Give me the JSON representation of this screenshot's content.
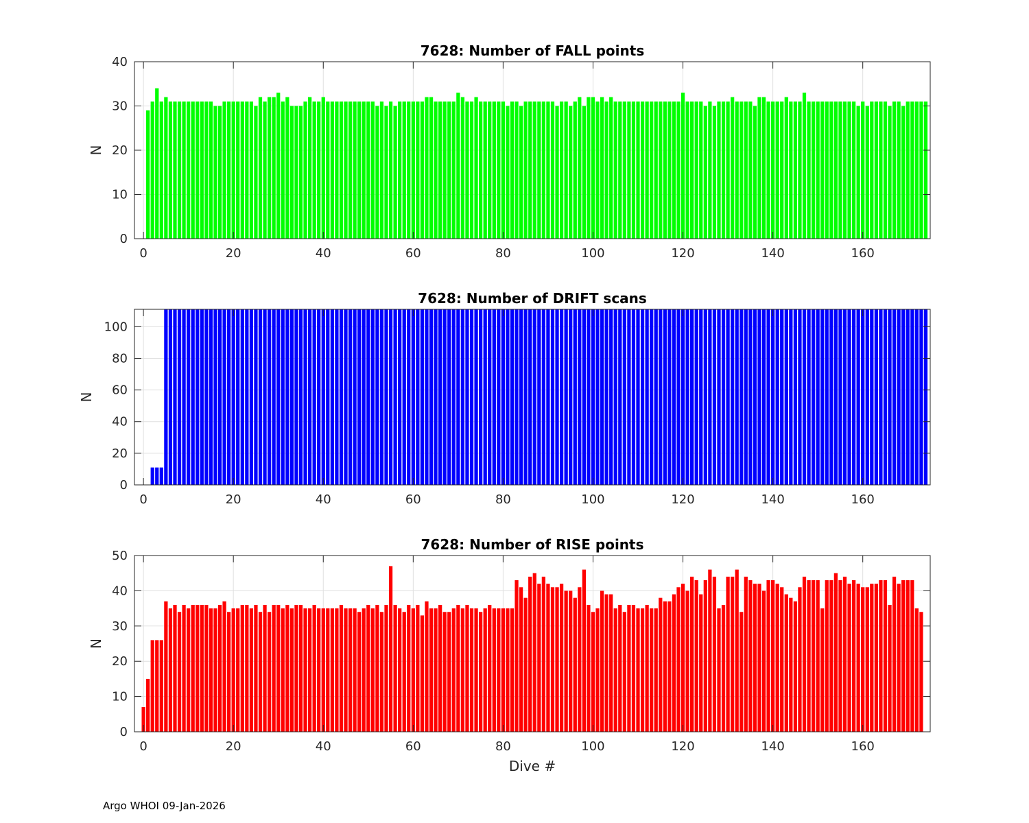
{
  "chart_data": [
    {
      "type": "bar",
      "title": "7628: Number of FALL points",
      "xlabel": "",
      "ylabel": "N",
      "color": "#00ff00",
      "xlim": [
        -2,
        175
      ],
      "ylim": [
        0,
        40
      ],
      "xticks": [
        0,
        20,
        40,
        60,
        80,
        100,
        120,
        140,
        160
      ],
      "yticks": [
        0,
        10,
        20,
        30,
        40
      ],
      "grid": true,
      "x_start": 1,
      "values": [
        29,
        31,
        34,
        31,
        32,
        31,
        31,
        31,
        31,
        31,
        31,
        31,
        31,
        31,
        31,
        30,
        30,
        31,
        31,
        31,
        31,
        31,
        31,
        31,
        30,
        32,
        31,
        32,
        32,
        33,
        31,
        32,
        30,
        30,
        30,
        31,
        32,
        31,
        31,
        32,
        31,
        31,
        31,
        31,
        31,
        31,
        31,
        31,
        31,
        31,
        31,
        30,
        31,
        30,
        31,
        30,
        31,
        31,
        31,
        31,
        31,
        31,
        32,
        32,
        31,
        31,
        31,
        31,
        31,
        33,
        32,
        31,
        31,
        32,
        31,
        31,
        31,
        31,
        31,
        31,
        30,
        31,
        31,
        30,
        31,
        31,
        31,
        31,
        31,
        31,
        31,
        30,
        31,
        31,
        30,
        31,
        32,
        30,
        32,
        32,
        31,
        32,
        31,
        32,
        31,
        31,
        31,
        31,
        31,
        31,
        31,
        31,
        31,
        31,
        31,
        31,
        31,
        31,
        31,
        33,
        31,
        31,
        31,
        31,
        30,
        31,
        30,
        31,
        31,
        31,
        32,
        31,
        31,
        31,
        31,
        30,
        32,
        32,
        31,
        31,
        31,
        31,
        32,
        31,
        31,
        31,
        33,
        31,
        31,
        31,
        31,
        31,
        31,
        31,
        31,
        31,
        31,
        31,
        30,
        31,
        30,
        31,
        31,
        31,
        31,
        30,
        31,
        31,
        30,
        31,
        31,
        31,
        31,
        31
      ]
    },
    {
      "type": "bar",
      "title": "7628: Number of DRIFT scans",
      "xlabel": "",
      "ylabel": "N",
      "color": "#0000ff",
      "xlim": [
        -2,
        175
      ],
      "ylim": [
        0,
        111
      ],
      "xticks": [
        0,
        20,
        40,
        60,
        80,
        100,
        120,
        140,
        160
      ],
      "yticks": [
        0,
        20,
        40,
        60,
        80,
        100
      ],
      "grid": true,
      "x_start": 1,
      "values": [
        0,
        11,
        11,
        11,
        111,
        111,
        111,
        111,
        111,
        111,
        111,
        111,
        111,
        111,
        111,
        111,
        111,
        111,
        111,
        111,
        111,
        111,
        111,
        111,
        111,
        111,
        111,
        111,
        111,
        111,
        111,
        111,
        111,
        111,
        111,
        111,
        111,
        111,
        111,
        111,
        111,
        111,
        111,
        111,
        111,
        111,
        111,
        111,
        111,
        111,
        111,
        111,
        111,
        111,
        111,
        111,
        111,
        111,
        111,
        111,
        111,
        111,
        111,
        111,
        111,
        111,
        111,
        111,
        111,
        111,
        111,
        111,
        111,
        111,
        111,
        111,
        111,
        111,
        111,
        111,
        111,
        111,
        111,
        111,
        111,
        111,
        111,
        111,
        111,
        111,
        111,
        111,
        111,
        111,
        111,
        111,
        111,
        111,
        111,
        111,
        111,
        111,
        111,
        111,
        111,
        111,
        111,
        111,
        111,
        111,
        111,
        111,
        111,
        111,
        111,
        111,
        111,
        111,
        111,
        111,
        111,
        111,
        111,
        111,
        111,
        111,
        111,
        111,
        111,
        111,
        111,
        111,
        111,
        111,
        111,
        111,
        111,
        111,
        111,
        111,
        111,
        111,
        111,
        111,
        111,
        111,
        111,
        111,
        111,
        111,
        111,
        111,
        111,
        111,
        111,
        111,
        111,
        111,
        111,
        111,
        111,
        111,
        111,
        111,
        111,
        111,
        111,
        111,
        111,
        111,
        111,
        111,
        111,
        111
      ]
    },
    {
      "type": "bar",
      "title": "7628: Number of RISE points",
      "xlabel": "Dive #",
      "ylabel": "N",
      "color": "#ff0000",
      "xlim": [
        -2,
        175
      ],
      "ylim": [
        0,
        50
      ],
      "xticks": [
        0,
        20,
        40,
        60,
        80,
        100,
        120,
        140,
        160
      ],
      "yticks": [
        0,
        10,
        20,
        30,
        40,
        50
      ],
      "grid": true,
      "x_start": 0,
      "values": [
        7,
        15,
        26,
        26,
        26,
        37,
        35,
        36,
        34,
        36,
        35,
        36,
        36,
        36,
        36,
        35,
        35,
        36,
        37,
        34,
        35,
        35,
        36,
        36,
        35,
        36,
        34,
        36,
        34,
        36,
        36,
        35,
        36,
        35,
        36,
        36,
        35,
        35,
        36,
        35,
        35,
        35,
        35,
        35,
        36,
        35,
        35,
        35,
        34,
        35,
        36,
        35,
        36,
        34,
        36,
        47,
        36,
        35,
        34,
        36,
        35,
        36,
        33,
        37,
        35,
        35,
        36,
        34,
        34,
        35,
        36,
        35,
        36,
        35,
        35,
        34,
        35,
        36,
        35,
        35,
        35,
        35,
        35,
        43,
        41,
        38,
        44,
        45,
        42,
        44,
        42,
        41,
        41,
        42,
        40,
        40,
        38,
        41,
        46,
        36,
        34,
        35,
        40,
        39,
        39,
        35,
        36,
        34,
        36,
        36,
        35,
        35,
        36,
        35,
        35,
        38,
        37,
        37,
        39,
        41,
        42,
        40,
        44,
        43,
        39,
        43,
        46,
        44,
        35,
        36,
        44,
        44,
        46,
        34,
        44,
        43,
        42,
        42,
        40,
        43,
        43,
        42,
        41,
        39,
        38,
        37,
        41,
        44,
        43,
        43,
        43,
        35,
        43,
        43,
        45,
        43,
        44,
        42,
        43,
        42,
        41,
        41,
        42,
        42,
        43,
        43,
        36,
        44,
        42,
        43,
        43,
        43,
        35,
        34
      ]
    }
  ],
  "footer": "Argo WHOI 09-Jan-2026"
}
